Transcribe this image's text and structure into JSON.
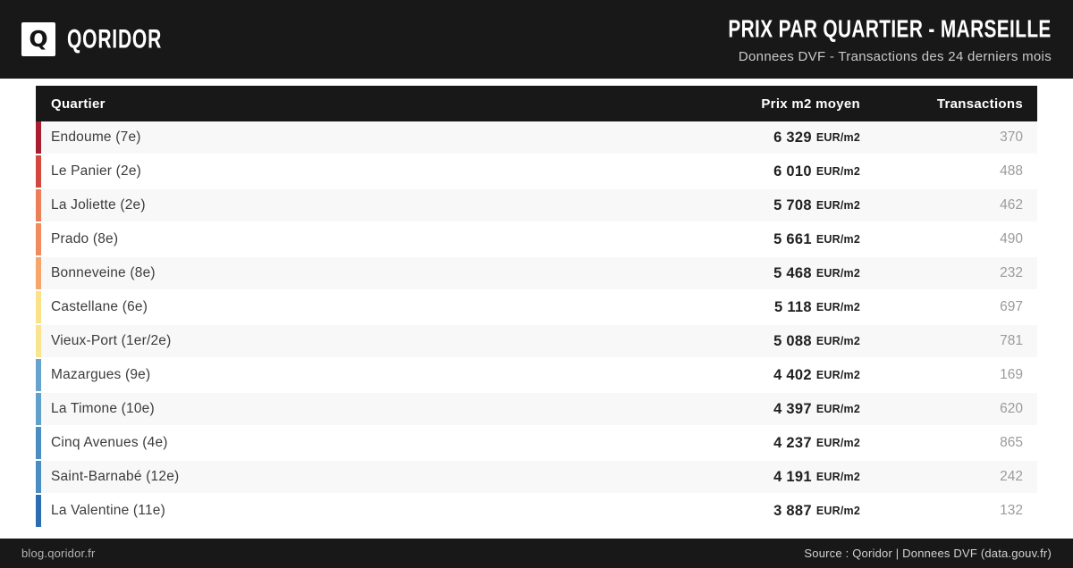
{
  "header": {
    "logo_letter": "Q",
    "brand": "QORIDOR",
    "title": "PRIX PAR QUARTIER - MARSEILLE",
    "subtitle": "Donnees DVF - Transactions des 24 derniers mois"
  },
  "table": {
    "columns": {
      "quartier": "Quartier",
      "prix": "Prix m2 moyen",
      "transactions": "Transactions"
    },
    "unit": "EUR/m2",
    "rows": [
      {
        "quartier": "Endoume (7e)",
        "prix": "6 329",
        "transactions": "370",
        "accent": "#a81d30"
      },
      {
        "quartier": "Le Panier (2e)",
        "prix": "6 010",
        "transactions": "488",
        "accent": "#d4473d"
      },
      {
        "quartier": "La Joliette (2e)",
        "prix": "5 708",
        "transactions": "462",
        "accent": "#ed7f58"
      },
      {
        "quartier": "Prado (8e)",
        "prix": "5 661",
        "transactions": "490",
        "accent": "#f18a5d"
      },
      {
        "quartier": "Bonneveine (8e)",
        "prix": "5 468",
        "transactions": "232",
        "accent": "#f5a668"
      },
      {
        "quartier": "Castellane (6e)",
        "prix": "5 118",
        "transactions": "697",
        "accent": "#f9e287"
      },
      {
        "quartier": "Vieux-Port (1er/2e)",
        "prix": "5 088",
        "transactions": "781",
        "accent": "#fae48f"
      },
      {
        "quartier": "Mazargues (9e)",
        "prix": "4 402",
        "transactions": "169",
        "accent": "#66a4cd"
      },
      {
        "quartier": "La Timone (10e)",
        "prix": "4 397",
        "transactions": "620",
        "accent": "#60a0ca"
      },
      {
        "quartier": "Cinq Avenues (4e)",
        "prix": "4 237",
        "transactions": "865",
        "accent": "#4b8cc2"
      },
      {
        "quartier": "Saint-Barnabé (12e)",
        "prix": "4 191",
        "transactions": "242",
        "accent": "#4b8cc2"
      },
      {
        "quartier": "La Valentine (11e)",
        "prix": "3 887",
        "transactions": "132",
        "accent": "#2c6db1"
      }
    ]
  },
  "footer": {
    "left": "blog.qoridor.fr",
    "right": "Source : Qoridor | Donnees DVF (data.gouv.fr)"
  },
  "colors": {
    "bar_background": "#181818",
    "row_alt_background": "#f8f8f8",
    "transactions_text": "#9b9b9b"
  },
  "chart_data": {
    "type": "table",
    "title": "PRIX PAR QUARTIER - MARSEILLE",
    "subtitle": "Donnees DVF - Transactions des 24 derniers mois",
    "columns": [
      "Quartier",
      "Prix m2 moyen (EUR/m2)",
      "Transactions"
    ],
    "rows": [
      [
        "Endoume (7e)",
        6329,
        370
      ],
      [
        "Le Panier (2e)",
        6010,
        488
      ],
      [
        "La Joliette (2e)",
        5708,
        462
      ],
      [
        "Prado (8e)",
        5661,
        490
      ],
      [
        "Bonneveine (8e)",
        5468,
        232
      ],
      [
        "Castellane (6e)",
        5118,
        697
      ],
      [
        "Vieux-Port (1er/2e)",
        5088,
        781
      ],
      [
        "Mazargues (9e)",
        4402,
        169
      ],
      [
        "La Timone (10e)",
        4397,
        620
      ],
      [
        "Cinq Avenues (4e)",
        4237,
        865
      ],
      [
        "Saint-Barnabé (12e)",
        4191,
        242
      ],
      [
        "La Valentine (11e)",
        3887,
        132
      ]
    ],
    "layout_hints": {
      "accent_scale": "red (high price) to yellow to blue (low price)",
      "sorted": "descending by price"
    }
  }
}
